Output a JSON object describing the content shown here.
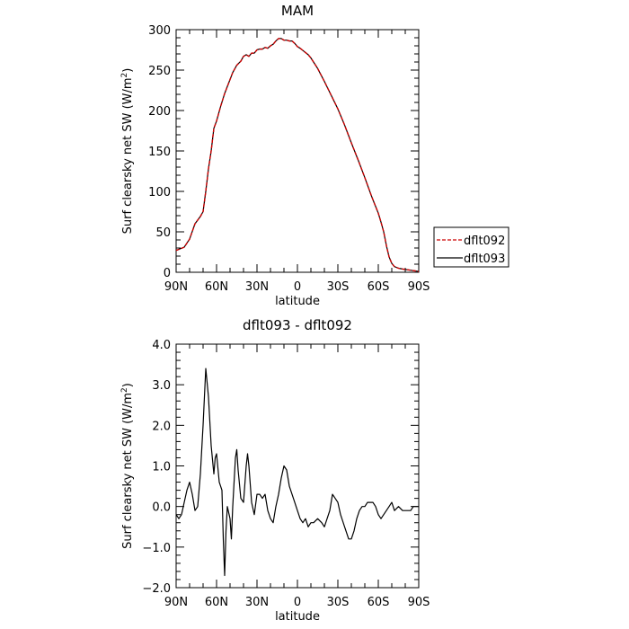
{
  "chart_data": [
    {
      "type": "line",
      "title": "MAM",
      "xlabel": "latitude",
      "ylabel": "Surf clearsky net SW (W/m",
      "ylabel_sup": "2",
      "ylabel_end": ")",
      "xlim": [
        90,
        -90
      ],
      "ylim": [
        0,
        300
      ],
      "x_ticks": [
        {
          "value": 90,
          "label": "90N"
        },
        {
          "value": 60,
          "label": "60N"
        },
        {
          "value": 30,
          "label": "30N"
        },
        {
          "value": 0,
          "label": "0"
        },
        {
          "value": -30,
          "label": "30S"
        },
        {
          "value": -60,
          "label": "60S"
        },
        {
          "value": -90,
          "label": "90S"
        }
      ],
      "y_ticks": [
        {
          "value": 0,
          "label": "0"
        },
        {
          "value": 50,
          "label": "50"
        },
        {
          "value": 100,
          "label": "100"
        },
        {
          "value": 150,
          "label": "150"
        },
        {
          "value": 200,
          "label": "200"
        },
        {
          "value": 250,
          "label": "250"
        },
        {
          "value": 300,
          "label": "300"
        }
      ],
      "legend": {
        "placement": "right"
      },
      "series": [
        {
          "name": "dflt092",
          "color": "#cc0000",
          "dash": true,
          "x": [
            90,
            84,
            80,
            76,
            72,
            70,
            68,
            66,
            64,
            62,
            60,
            57,
            54,
            51,
            48,
            45,
            42,
            40,
            38,
            36,
            34,
            32,
            30,
            28,
            26,
            24,
            22,
            20,
            18,
            16,
            14,
            12,
            10,
            8,
            6,
            4,
            2,
            0,
            -2,
            -5,
            -8,
            -10,
            -15,
            -20,
            -25,
            -30,
            -35,
            -40,
            -45,
            -50,
            -55,
            -60,
            -62,
            -64,
            -66,
            -68,
            -70,
            -72,
            -75,
            -78,
            -82,
            -86,
            -90
          ],
          "y": [
            27,
            31,
            41,
            60,
            69,
            75,
            100,
            128,
            150,
            178,
            187,
            205,
            221,
            234,
            247,
            256,
            261,
            267,
            269,
            267,
            271,
            271,
            275,
            276,
            276,
            278,
            277,
            280,
            282,
            286,
            289,
            289,
            287,
            287,
            286,
            286,
            283,
            279,
            277,
            273,
            269,
            265,
            252,
            236,
            219,
            202,
            182,
            160,
            139,
            117,
            94,
            73,
            62,
            50,
            33,
            19,
            11,
            7,
            5,
            4,
            3,
            2,
            1
          ]
        },
        {
          "name": "dflt093",
          "color": "#000000",
          "dash": false,
          "x": [
            90,
            84,
            80,
            76,
            72,
            70,
            68,
            66,
            64,
            62,
            60,
            57,
            54,
            51,
            48,
            45,
            42,
            40,
            38,
            36,
            34,
            32,
            30,
            28,
            26,
            24,
            22,
            20,
            18,
            16,
            14,
            12,
            10,
            8,
            6,
            4,
            2,
            0,
            -2,
            -5,
            -8,
            -10,
            -15,
            -20,
            -25,
            -30,
            -35,
            -40,
            -45,
            -50,
            -55,
            -60,
            -62,
            -64,
            -66,
            -68,
            -70,
            -72,
            -75,
            -78,
            -82,
            -86,
            -90
          ],
          "y": [
            27,
            31,
            41,
            60,
            69,
            75,
            100,
            128,
            150,
            178,
            187,
            205,
            221,
            234,
            247,
            256,
            261,
            267,
            269,
            267,
            271,
            271,
            275,
            276,
            276,
            278,
            277,
            280,
            282,
            286,
            289,
            289,
            287,
            287,
            286,
            286,
            283,
            279,
            277,
            273,
            269,
            265,
            252,
            236,
            219,
            202,
            182,
            160,
            139,
            117,
            94,
            73,
            62,
            50,
            33,
            19,
            11,
            7,
            5,
            4,
            3,
            2,
            1
          ]
        }
      ]
    },
    {
      "type": "line",
      "title": "dflt093 - dflt092",
      "xlabel": "latitude",
      "ylabel": "Surf clearsky net SW (W/m",
      "ylabel_sup": "2",
      "ylabel_end": ")",
      "xlim": [
        90,
        -90
      ],
      "ylim": [
        -2.0,
        4.0
      ],
      "x_ticks": [
        {
          "value": 90,
          "label": "90N"
        },
        {
          "value": 60,
          "label": "60N"
        },
        {
          "value": 30,
          "label": "30N"
        },
        {
          "value": 0,
          "label": "0"
        },
        {
          "value": -30,
          "label": "30S"
        },
        {
          "value": -60,
          "label": "60S"
        },
        {
          "value": -90,
          "label": "90S"
        }
      ],
      "y_ticks": [
        {
          "value": -2.0,
          "label": "−2.0"
        },
        {
          "value": -1.0,
          "label": "−1.0"
        },
        {
          "value": 0.0,
          "label": "0.0"
        },
        {
          "value": 1.0,
          "label": "1.0"
        },
        {
          "value": 2.0,
          "label": "2.0"
        },
        {
          "value": 3.0,
          "label": "3.0"
        },
        {
          "value": 4.0,
          "label": "4.0"
        }
      ],
      "series": [
        {
          "color": "#000000",
          "dash": false,
          "x": [
            90,
            88,
            86,
            84,
            82,
            80,
            78,
            76,
            74,
            72,
            70,
            68,
            66,
            64,
            62,
            61,
            60,
            58,
            56,
            55,
            54,
            53,
            52,
            50,
            49,
            48,
            46,
            45,
            44,
            42,
            40,
            38,
            37,
            36,
            34,
            32,
            30,
            28,
            26,
            24,
            22,
            20,
            18,
            16,
            14,
            12,
            10,
            8,
            6,
            4,
            2,
            0,
            -2,
            -4,
            -6,
            -8,
            -10,
            -12,
            -15,
            -18,
            -20,
            -24,
            -26,
            -28,
            -30,
            -32,
            -35,
            -38,
            -40,
            -42,
            -44,
            -46,
            -48,
            -50,
            -52,
            -54,
            -56,
            -58,
            -60,
            -62,
            -64,
            -66,
            -68,
            -70,
            -72,
            -75,
            -78,
            -80,
            -82,
            -84,
            -86,
            -88,
            -90
          ],
          "y": [
            -0.2,
            -0.3,
            -0.2,
            0.1,
            0.4,
            0.6,
            0.3,
            -0.1,
            0.0,
            0.8,
            2.0,
            3.4,
            2.7,
            1.5,
            0.8,
            1.2,
            1.3,
            0.6,
            0.4,
            -0.8,
            -1.7,
            -0.6,
            0.0,
            -0.3,
            -0.8,
            0.0,
            1.2,
            1.4,
            0.9,
            0.2,
            0.1,
            1.0,
            1.3,
            1.0,
            0.1,
            -0.2,
            0.3,
            0.3,
            0.2,
            0.3,
            -0.1,
            -0.3,
            -0.4,
            0.0,
            0.3,
            0.7,
            1.0,
            0.9,
            0.5,
            0.3,
            0.1,
            -0.1,
            -0.3,
            -0.4,
            -0.3,
            -0.5,
            -0.4,
            -0.4,
            -0.3,
            -0.4,
            -0.5,
            -0.1,
            0.3,
            0.2,
            0.1,
            -0.2,
            -0.5,
            -0.8,
            -0.8,
            -0.6,
            -0.3,
            -0.1,
            0.0,
            0.0,
            0.1,
            0.1,
            0.1,
            0.0,
            -0.2,
            -0.3,
            -0.2,
            -0.1,
            0.0,
            0.1,
            -0.1,
            0.0,
            -0.1,
            -0.1,
            -0.1,
            -0.1,
            0.0,
            0.0,
            0.0
          ]
        }
      ]
    }
  ]
}
